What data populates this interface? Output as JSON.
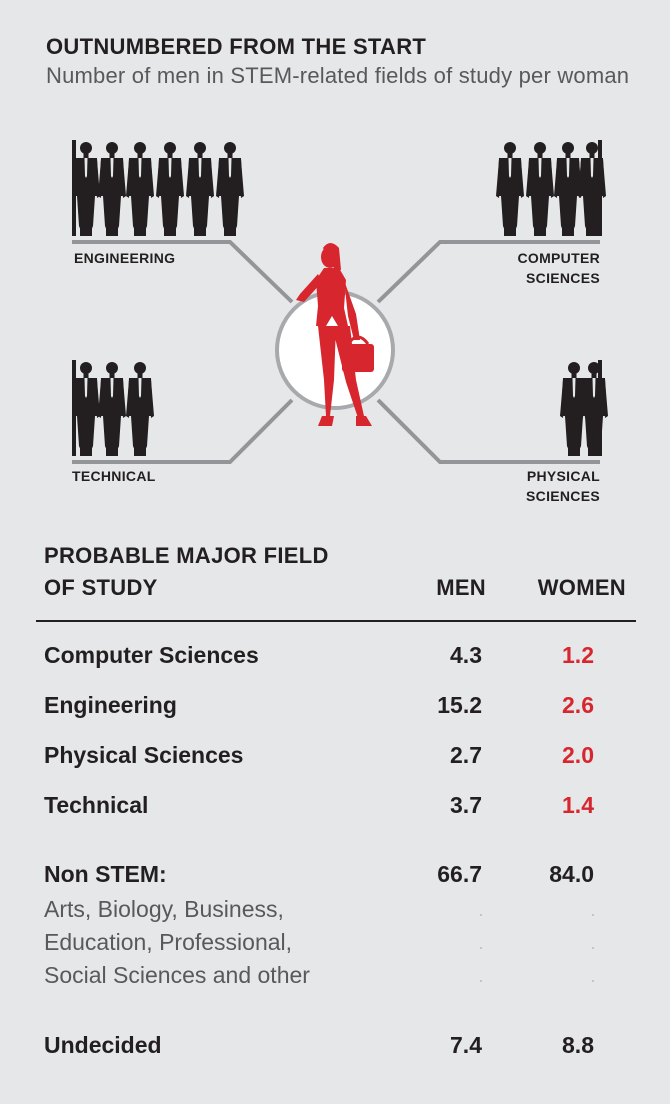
{
  "title": "OUTNUMBERED FROM THE START",
  "subtitle": "Number of men in STEM-related fields of study per woman",
  "infographic": {
    "labels": {
      "engineering": "ENGINEERING",
      "computer_sciences": [
        "COMPUTER",
        "SCIENCES"
      ],
      "technical": "TECHNICAL",
      "physical_sciences": [
        "PHYSICAL",
        "SCIENCES"
      ]
    },
    "men_per_woman": {
      "engineering": 6,
      "computer_sciences": 4,
      "technical": 3,
      "physical_sciences": 2
    },
    "colors": {
      "woman": "#d7262e",
      "lines": "#939598",
      "men": "#231f20"
    }
  },
  "table": {
    "header_field": [
      "PROBABLE MAJOR FIELD",
      "OF STUDY"
    ],
    "header_men": "MEN",
    "header_women": "WOMEN",
    "rows": [
      {
        "label": "Computer Sciences",
        "men": "4.3",
        "women": "1.2"
      },
      {
        "label": "Engineering",
        "men": "15.2",
        "women": "2.6"
      },
      {
        "label": "Physical Sciences",
        "men": "2.7",
        "women": "2.0"
      },
      {
        "label": "Technical",
        "men": "3.7",
        "women": "1.4"
      }
    ],
    "non_stem": {
      "label": "Non STEM:",
      "men": "66.7",
      "women": "84.0",
      "sub_lines": [
        "Arts, Biology, Business,",
        "Education, Professional,",
        "Social Sciences and other"
      ]
    },
    "undecided": {
      "label": "Undecided",
      "men": "7.4",
      "women": "8.8"
    },
    "colors": {
      "women_highlight": "#d7262e",
      "text": "#231f20"
    }
  }
}
